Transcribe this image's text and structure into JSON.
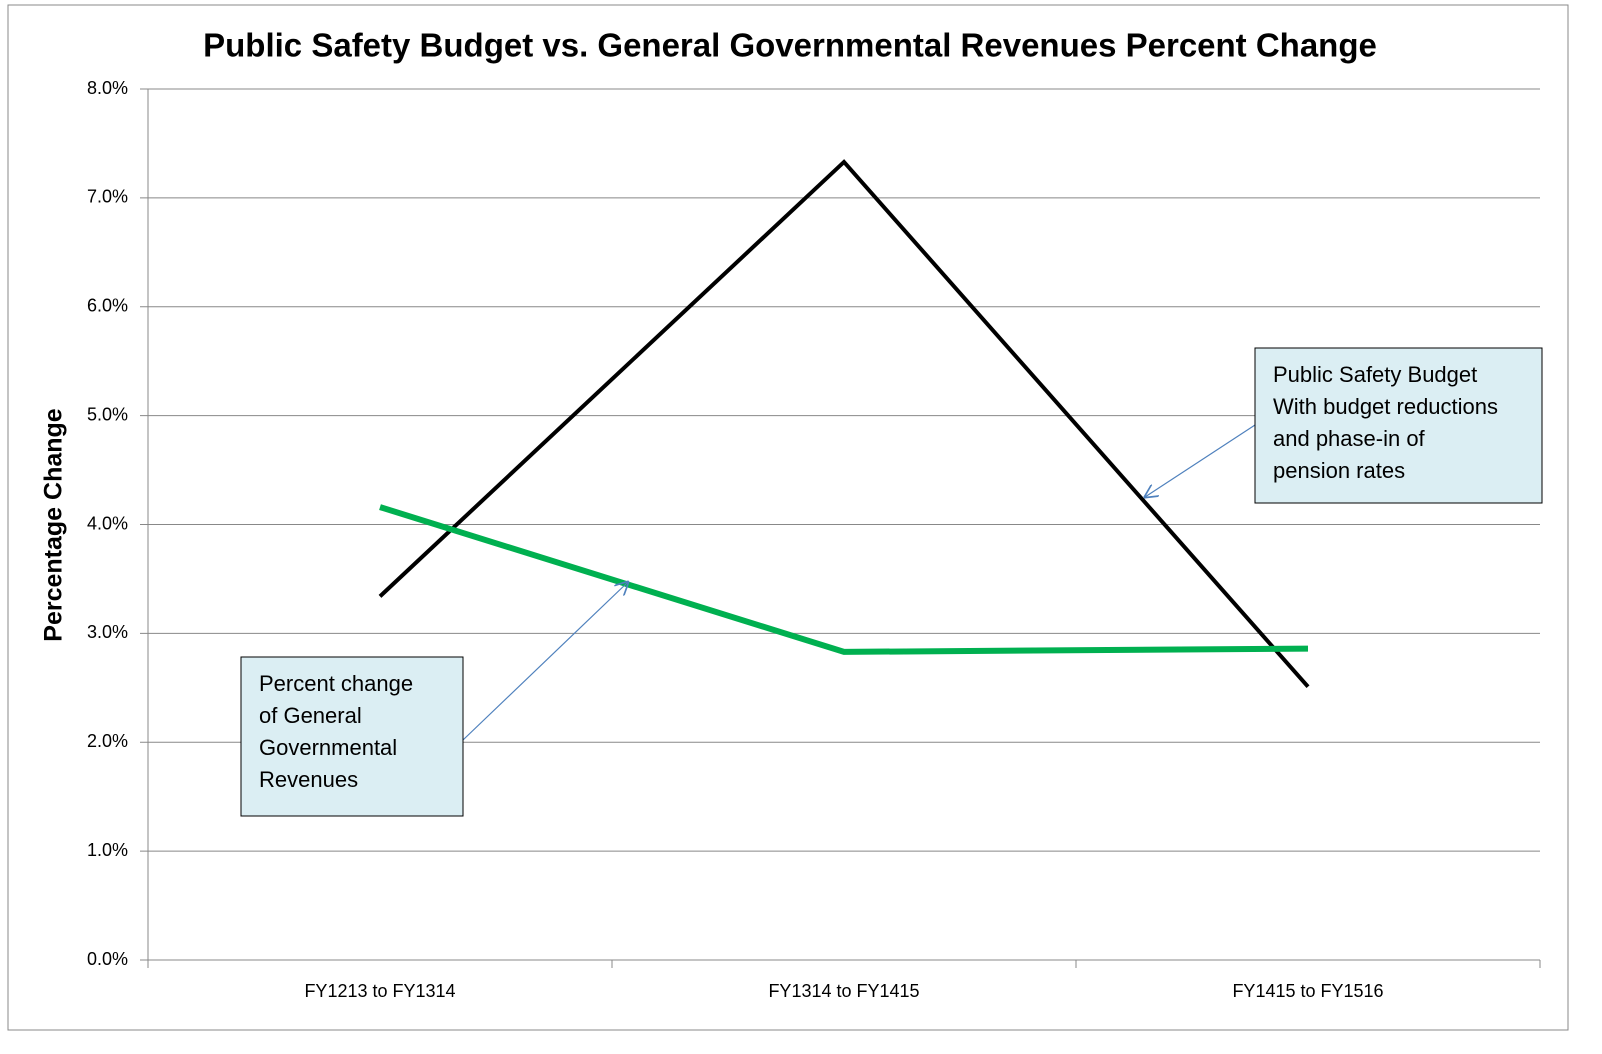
{
  "chart_data": {
    "type": "line",
    "title": "Public Safety Budget vs. General Governmental Revenues Percent Change",
    "ylabel": "Percentage Change",
    "categories": [
      "FY1213 to FY1314",
      "FY1314 to FY1415",
      "FY1415 to FY1516"
    ],
    "series": [
      {
        "color": "#000000",
        "values": [
          3.34,
          7.33,
          2.51
        ]
      },
      {
        "color": "#00b050",
        "values": [
          4.16,
          2.83,
          2.86
        ]
      }
    ],
    "ylim": [
      0,
      8
    ],
    "yticks": [
      {
        "value": 0,
        "label": "0.0%"
      },
      {
        "value": 1,
        "label": "1.0%"
      },
      {
        "value": 2,
        "label": "2.0%"
      },
      {
        "value": 3,
        "label": "3.0%"
      },
      {
        "value": 4,
        "label": "4.0%"
      },
      {
        "value": 5,
        "label": "5.0%"
      },
      {
        "value": 6,
        "label": "6.0%"
      },
      {
        "value": 7,
        "label": "7.0%"
      },
      {
        "value": 8,
        "label": "8.0%"
      }
    ],
    "grid": true,
    "annotations": [
      {
        "lines": [
          "Public Safety Budget",
          "With budget reductions",
          "and phase-in of",
          "pension rates"
        ]
      },
      {
        "lines": [
          "Percent change",
          "of General",
          "Governmental",
          "Revenues"
        ]
      }
    ]
  }
}
